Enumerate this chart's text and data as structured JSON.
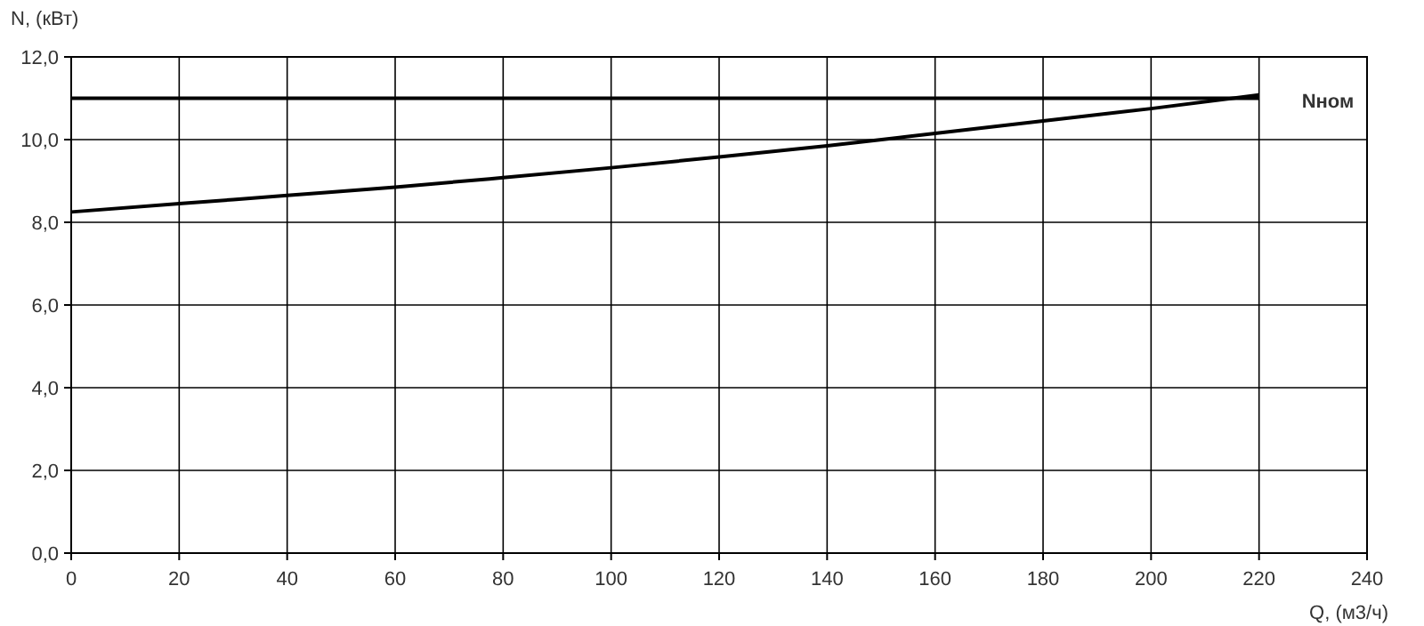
{
  "chart_data": {
    "type": "line",
    "xlabel": "Q, (м3/ч)",
    "ylabel": "N, (кВт)",
    "x": [
      0,
      20,
      40,
      60,
      80,
      100,
      120,
      140,
      160,
      180,
      200,
      220
    ],
    "series": [
      {
        "color": "#000000",
        "values": [
          8.25,
          8.45,
          8.65,
          8.85,
          9.08,
          9.32,
          9.58,
          9.85,
          10.15,
          10.45,
          10.75,
          11.08
        ]
      },
      {
        "name": "Nном",
        "color": "#000000",
        "x": [
          0,
          220
        ],
        "values": [
          11,
          11
        ]
      }
    ],
    "xlim": [
      0,
      240
    ],
    "xticks": [
      0,
      20,
      40,
      60,
      80,
      100,
      120,
      140,
      160,
      180,
      200,
      220,
      240
    ],
    "ylim": [
      0,
      12
    ],
    "yticks": [
      {
        "value": 0,
        "label": "0,0"
      },
      {
        "value": 2,
        "label": "2,0"
      },
      {
        "value": 4,
        "label": "4,0"
      },
      {
        "value": 6,
        "label": "6,0"
      },
      {
        "value": 8,
        "label": "8,0"
      },
      {
        "value": 10,
        "label": "10,0"
      },
      {
        "value": 12,
        "label": "12,0"
      }
    ],
    "grid": true,
    "marker": "none",
    "line_style": "solid"
  }
}
